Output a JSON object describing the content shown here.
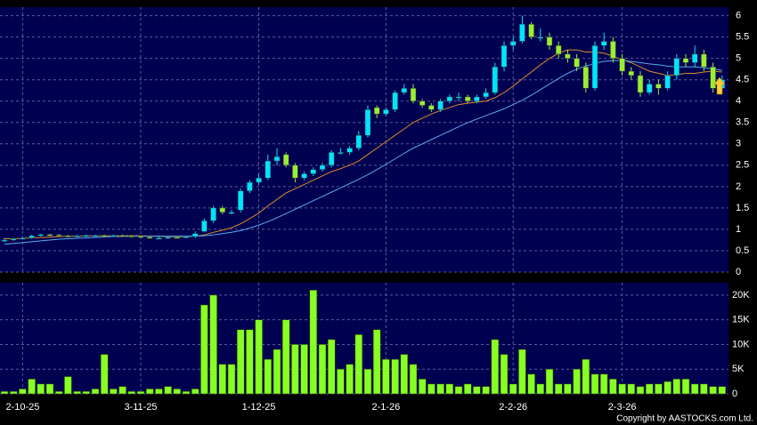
{
  "chart_data": {
    "type": "candlestick",
    "categories": [
      null,
      null,
      "2-10-25",
      null,
      null,
      null,
      null,
      null,
      null,
      null,
      null,
      null,
      null,
      null,
      null,
      "3-11-25",
      null,
      null,
      null,
      null,
      null,
      null,
      null,
      null,
      null,
      null,
      null,
      null,
      "1-12-25",
      null,
      null,
      null,
      null,
      null,
      null,
      null,
      null,
      null,
      null,
      null,
      null,
      null,
      "2-1-26",
      null,
      null,
      null,
      null,
      null,
      null,
      null,
      null,
      null,
      null,
      null,
      null,
      null,
      "2-2-26",
      null,
      null,
      null,
      null,
      null,
      null,
      null,
      null,
      null,
      null,
      null,
      "2-3-26",
      null,
      null,
      null,
      null,
      null,
      null,
      null,
      null,
      null,
      null,
      null
    ],
    "open": [
      0.72,
      0.75,
      0.78,
      0.8,
      0.85,
      0.88,
      0.87,
      0.85,
      0.84,
      0.85,
      0.86,
      0.86,
      0.85,
      0.86,
      0.85,
      0.84,
      0.82,
      0.8,
      0.8,
      0.82,
      0.81,
      0.83,
      0.95,
      1.2,
      1.5,
      1.4,
      1.45,
      1.9,
      2.1,
      2.2,
      2.6,
      2.75,
      2.5,
      2.2,
      2.3,
      2.4,
      2.5,
      2.8,
      2.8,
      2.9,
      3.2,
      3.85,
      3.7,
      3.8,
      4.2,
      4.3,
      4.0,
      3.9,
      3.8,
      4.0,
      4.1,
      4.1,
      4.0,
      4.1,
      4.2,
      4.8,
      5.3,
      5.4,
      5.8,
      5.5,
      5.5,
      5.3,
      5.1,
      5.0,
      4.8,
      4.3,
      5.3,
      5.4,
      5.0,
      4.7,
      4.6,
      4.2,
      4.4,
      4.3,
      4.6,
      5.0,
      4.9,
      5.1,
      4.8,
      4.3
    ],
    "high": [
      0.8,
      0.8,
      0.83,
      0.87,
      0.9,
      0.9,
      0.89,
      0.87,
      0.87,
      0.88,
      0.88,
      0.88,
      0.88,
      0.88,
      0.87,
      0.86,
      0.84,
      0.83,
      0.84,
      0.84,
      0.85,
      0.95,
      1.25,
      1.55,
      1.55,
      1.45,
      1.95,
      2.15,
      2.3,
      2.75,
      2.9,
      2.8,
      2.55,
      2.35,
      2.45,
      2.55,
      2.85,
      2.9,
      2.95,
      3.3,
      3.9,
      3.9,
      3.85,
      4.25,
      4.4,
      4.4,
      4.05,
      3.95,
      4.05,
      4.15,
      4.2,
      4.15,
      4.15,
      4.3,
      4.9,
      5.4,
      5.5,
      6.0,
      5.85,
      5.7,
      5.6,
      5.4,
      5.2,
      5.1,
      4.9,
      5.4,
      5.6,
      5.5,
      5.1,
      4.8,
      4.7,
      4.5,
      4.5,
      4.7,
      5.1,
      5.1,
      5.3,
      5.2,
      4.9,
      4.6
    ],
    "low": [
      0.7,
      0.73,
      0.76,
      0.78,
      0.83,
      0.85,
      0.84,
      0.82,
      0.82,
      0.83,
      0.84,
      0.83,
      0.83,
      0.83,
      0.82,
      0.8,
      0.78,
      0.77,
      0.78,
      0.79,
      0.8,
      0.8,
      0.93,
      1.15,
      1.35,
      1.35,
      1.4,
      1.85,
      2.05,
      2.15,
      2.5,
      2.45,
      2.1,
      2.15,
      2.25,
      2.35,
      2.45,
      2.75,
      2.75,
      2.85,
      3.15,
      3.6,
      3.65,
      3.75,
      4.15,
      3.95,
      3.85,
      3.75,
      3.75,
      3.95,
      4.0,
      3.95,
      3.95,
      4.05,
      4.15,
      4.7,
      5.2,
      5.35,
      5.45,
      5.4,
      5.2,
      5.0,
      4.9,
      4.7,
      4.2,
      4.25,
      5.2,
      4.9,
      4.6,
      4.5,
      4.1,
      4.15,
      4.15,
      4.25,
      4.5,
      4.8,
      4.8,
      4.7,
      4.2,
      4.25
    ],
    "close": [
      0.75,
      0.78,
      0.8,
      0.85,
      0.88,
      0.87,
      0.85,
      0.84,
      0.85,
      0.86,
      0.86,
      0.85,
      0.86,
      0.85,
      0.84,
      0.82,
      0.8,
      0.8,
      0.82,
      0.81,
      0.83,
      0.9,
      1.2,
      1.5,
      1.4,
      1.4,
      1.9,
      2.1,
      2.2,
      2.6,
      2.7,
      2.5,
      2.2,
      2.3,
      2.4,
      2.5,
      2.8,
      2.8,
      2.9,
      3.2,
      3.8,
      3.7,
      3.8,
      4.2,
      4.3,
      4.0,
      3.9,
      3.8,
      4.0,
      4.1,
      4.1,
      4.0,
      4.1,
      4.2,
      4.8,
      5.3,
      5.4,
      5.8,
      5.5,
      5.5,
      5.3,
      5.1,
      5.0,
      4.8,
      4.3,
      5.3,
      5.4,
      5.0,
      4.7,
      4.6,
      4.2,
      4.4,
      4.3,
      4.6,
      5.0,
      4.9,
      5.1,
      4.8,
      4.3,
      4.5
    ],
    "up_color": "#00e5ff",
    "down_color": "#99ee33",
    "moving_averages": [
      {
        "color": "#e08a2a",
        "values": [
          0.78,
          0.78,
          0.79,
          0.8,
          0.81,
          0.82,
          0.83,
          0.84,
          0.84,
          0.85,
          0.85,
          0.85,
          0.85,
          0.85,
          0.85,
          0.85,
          0.84,
          0.84,
          0.83,
          0.83,
          0.83,
          0.84,
          0.87,
          0.93,
          0.98,
          1.04,
          1.13,
          1.25,
          1.38,
          1.55,
          1.7,
          1.85,
          1.95,
          2.05,
          2.15,
          2.25,
          2.35,
          2.42,
          2.5,
          2.6,
          2.75,
          2.9,
          3.05,
          3.2,
          3.35,
          3.5,
          3.6,
          3.7,
          3.78,
          3.85,
          3.92,
          3.95,
          3.98,
          4.0,
          4.08,
          4.2,
          4.35,
          4.52,
          4.68,
          4.85,
          5.0,
          5.12,
          5.2,
          5.2,
          5.15,
          5.15,
          5.12,
          5.05,
          4.97,
          4.9,
          4.8,
          4.7,
          4.65,
          4.6,
          4.62,
          4.65,
          4.65,
          4.68,
          4.7,
          4.68
        ]
      },
      {
        "color": "#5aa9f0",
        "values": [
          0.65,
          0.67,
          0.69,
          0.71,
          0.73,
          0.75,
          0.77,
          0.78,
          0.79,
          0.8,
          0.81,
          0.82,
          0.83,
          0.83,
          0.84,
          0.84,
          0.84,
          0.84,
          0.84,
          0.84,
          0.84,
          0.84,
          0.85,
          0.87,
          0.9,
          0.93,
          0.97,
          1.03,
          1.1,
          1.18,
          1.27,
          1.37,
          1.47,
          1.57,
          1.67,
          1.77,
          1.87,
          1.97,
          2.07,
          2.17,
          2.28,
          2.4,
          2.52,
          2.65,
          2.78,
          2.9,
          3.0,
          3.1,
          3.2,
          3.3,
          3.4,
          3.5,
          3.58,
          3.66,
          3.74,
          3.82,
          3.92,
          4.02,
          4.14,
          4.27,
          4.4,
          4.53,
          4.65,
          4.75,
          4.82,
          4.88,
          4.93,
          4.95,
          4.95,
          4.93,
          4.9,
          4.87,
          4.85,
          4.82,
          4.8,
          4.8,
          4.8,
          4.78,
          4.75,
          4.72
        ]
      }
    ],
    "volume": [
      0.5,
      0.5,
      1,
      3,
      2,
      2,
      0.5,
      3.5,
      0.5,
      0.5,
      1,
      8,
      1,
      1.5,
      0.5,
      0.5,
      1,
      1,
      1.5,
      1,
      0.5,
      1,
      18,
      20,
      6,
      6,
      13,
      13,
      15,
      7,
      9,
      15,
      10,
      10,
      21,
      10,
      11,
      5,
      6,
      12,
      5,
      13,
      7,
      7,
      8,
      6,
      3,
      2,
      2,
      2,
      1.5,
      2,
      1.5,
      1.5,
      11,
      8,
      2,
      9,
      4,
      2,
      5,
      2,
      2,
      5,
      7,
      4,
      4,
      3,
      2,
      2,
      1.5,
      2,
      2,
      2.5,
      3,
      3,
      2,
      2,
      1.5,
      1.5
    ],
    "volume_color": "#88ff22",
    "ylim": [
      0,
      6.2
    ],
    "yticks": [
      0,
      0.5,
      1,
      1.5,
      2,
      2.5,
      3,
      3.5,
      4,
      4.5,
      5,
      5.5,
      6
    ],
    "volume_ylim": [
      0,
      22.5
    ],
    "volume_ticks": [
      0,
      {
        "value": 5,
        "label": "5K"
      },
      {
        "value": 10,
        "label": "10K"
      },
      {
        "value": 15,
        "label": "15K"
      },
      {
        "value": 20,
        "label": "20K"
      }
    ],
    "grid": true,
    "copyright": "Copyright by AASTOCKS.com Ltd."
  }
}
